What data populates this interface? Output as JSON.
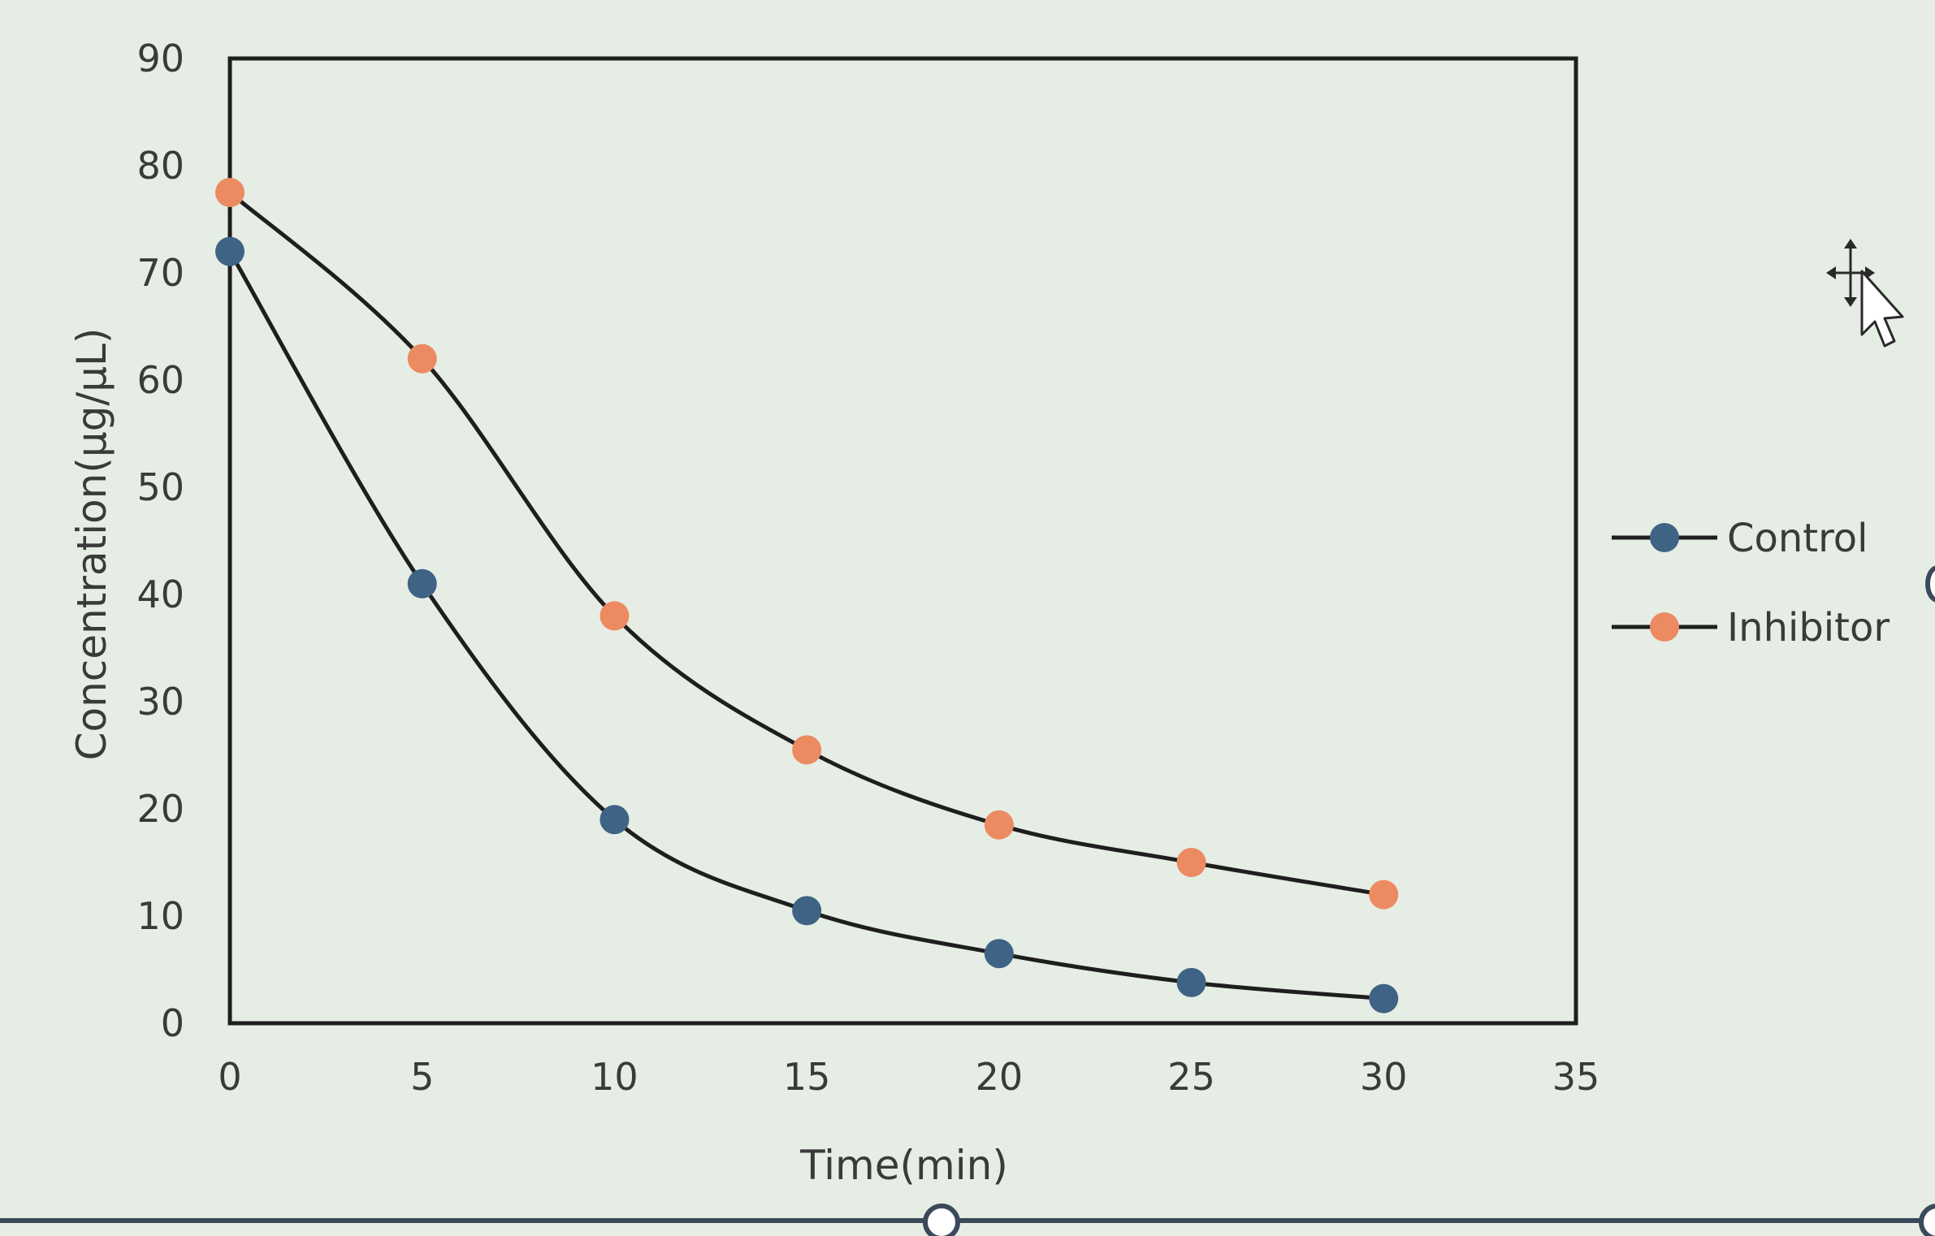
{
  "chart_data": {
    "type": "line",
    "xlabel": "Time(min)",
    "ylabel": "Concentration(µg/µL)",
    "xlim": [
      0,
      35
    ],
    "ylim": [
      0,
      90
    ],
    "xticks": [
      0,
      5,
      10,
      15,
      20,
      25,
      30,
      35
    ],
    "yticks": [
      0,
      10,
      20,
      30,
      40,
      50,
      60,
      70,
      80,
      90
    ],
    "x": [
      0,
      5,
      10,
      15,
      20,
      25,
      30
    ],
    "series": [
      {
        "name": "Control",
        "color": "#3f6384",
        "values": [
          72,
          41,
          19,
          10.5,
          6.5,
          3.8,
          2.3
        ]
      },
      {
        "name": "Inhibitor",
        "color": "#ec8a62",
        "values": [
          77.5,
          62,
          38,
          25.5,
          18.5,
          15,
          12
        ]
      }
    ],
    "line_color": "#1e1e1e",
    "smooth": true,
    "grid": false,
    "legend_position": "right"
  },
  "icons": {
    "cursor": "move-cursor-icon"
  }
}
